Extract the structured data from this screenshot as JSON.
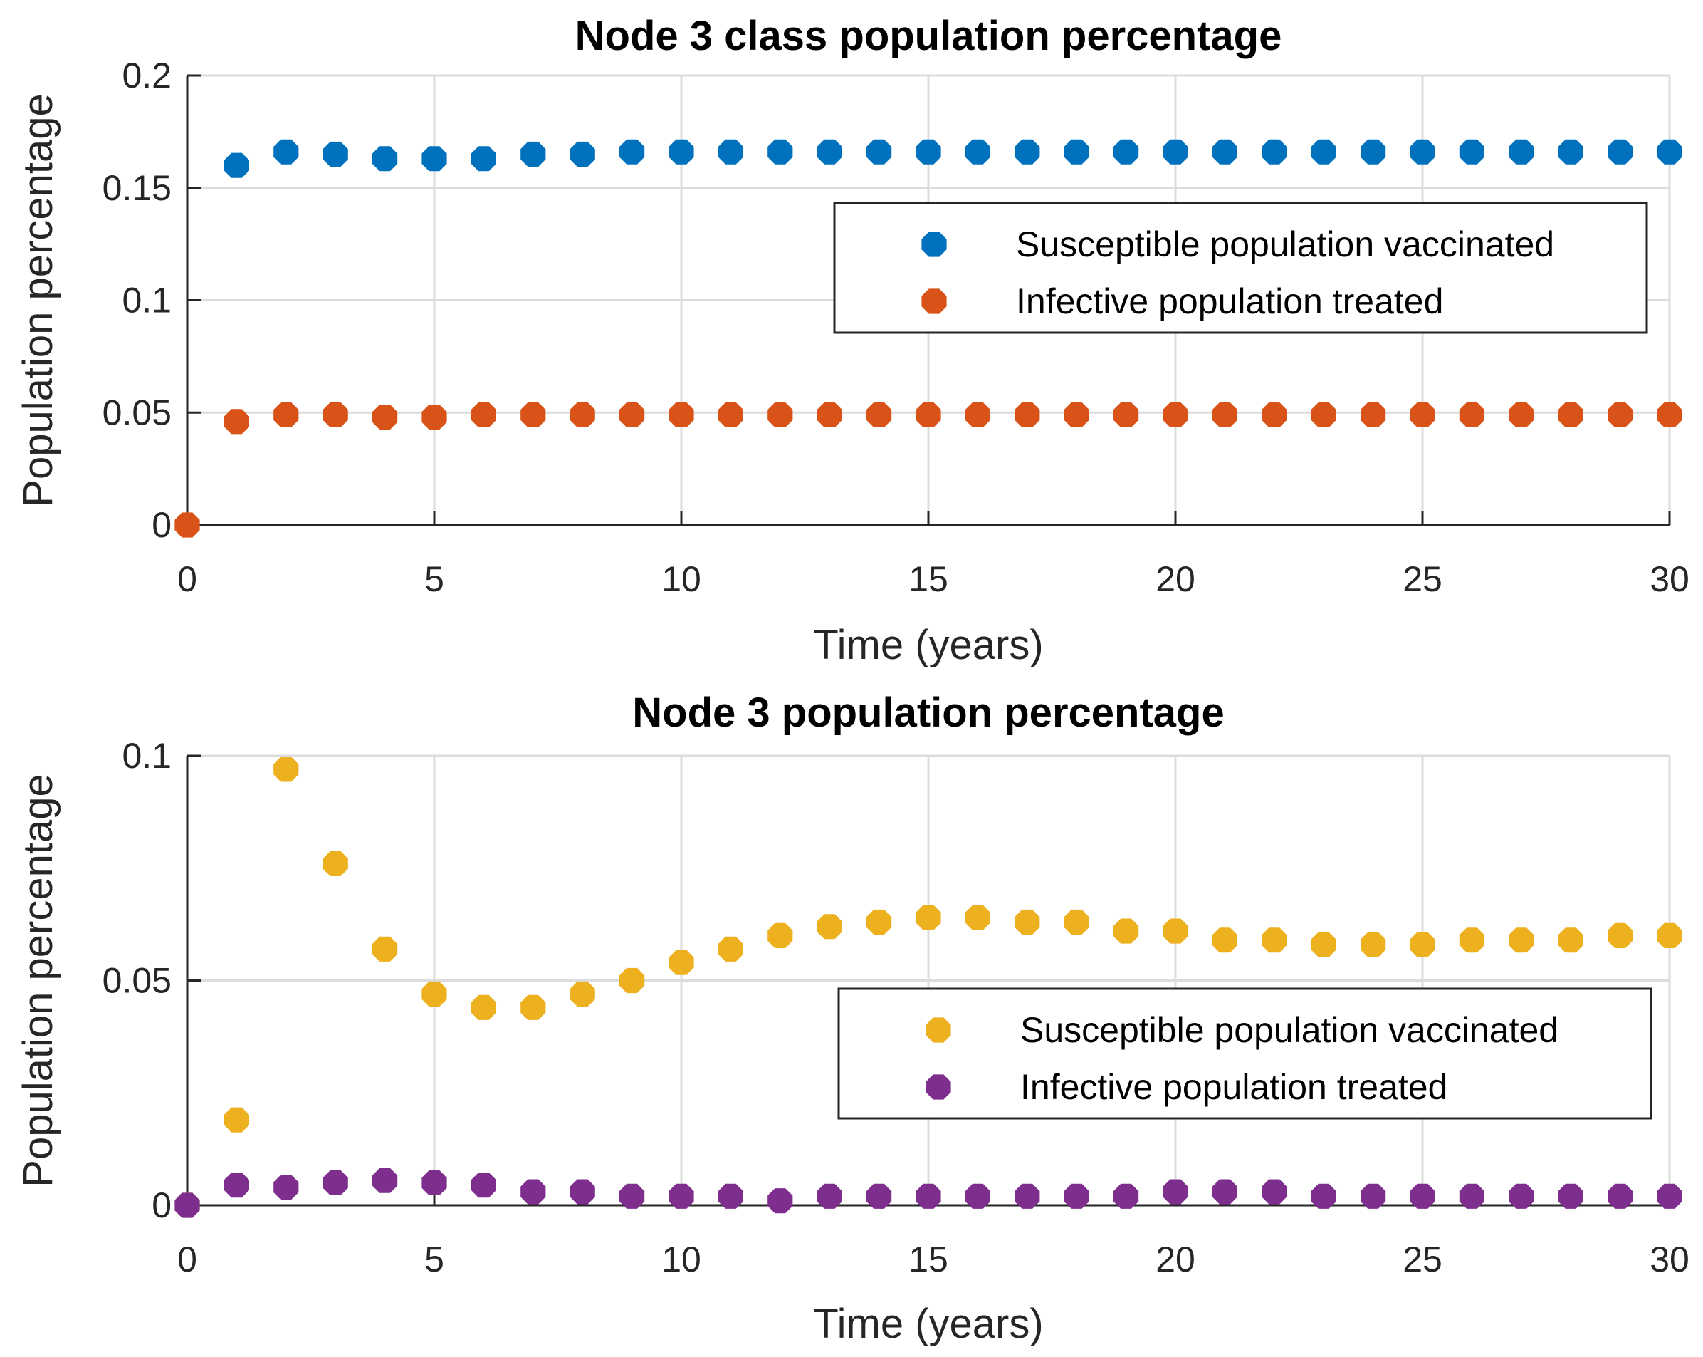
{
  "chart_data": [
    {
      "type": "scatter",
      "title": "Node 3 class population percentage",
      "xlabel": "Time (years)",
      "ylabel": "Population percentage",
      "xlim": [
        0,
        30
      ],
      "ylim": [
        0,
        0.2
      ],
      "xticks": [
        0,
        5,
        10,
        15,
        20,
        25,
        30
      ],
      "xtick_labels": [
        "0",
        "5",
        "10",
        "15",
        "20",
        "25",
        "30"
      ],
      "yticks": [
        0,
        0.05,
        0.1,
        0.15,
        0.2
      ],
      "ytick_labels": [
        "0",
        "0.05",
        "0.1",
        "0.15",
        "0.2"
      ],
      "grid": true,
      "legend_position": "right",
      "series": [
        {
          "name": "Susceptible population vaccinated",
          "color": "#0072BD",
          "x": [
            1,
            2,
            3,
            4,
            5,
            6,
            7,
            8,
            9,
            10,
            11,
            12,
            13,
            14,
            15,
            16,
            17,
            18,
            19,
            20,
            21,
            22,
            23,
            24,
            25,
            26,
            27,
            28,
            29,
            30
          ],
          "y": [
            0.16,
            0.166,
            0.165,
            0.163,
            0.163,
            0.163,
            0.165,
            0.165,
            0.166,
            0.166,
            0.166,
            0.166,
            0.166,
            0.166,
            0.166,
            0.166,
            0.166,
            0.166,
            0.166,
            0.166,
            0.166,
            0.166,
            0.166,
            0.166,
            0.166,
            0.166,
            0.166,
            0.166,
            0.166,
            0.166
          ]
        },
        {
          "name": "Infective population treated",
          "color": "#D95319",
          "x": [
            0,
            1,
            2,
            3,
            4,
            5,
            6,
            7,
            8,
            9,
            10,
            11,
            12,
            13,
            14,
            15,
            16,
            17,
            18,
            19,
            20,
            21,
            22,
            23,
            24,
            25,
            26,
            27,
            28,
            29,
            30
          ],
          "y": [
            0,
            0.046,
            0.049,
            0.049,
            0.048,
            0.048,
            0.049,
            0.049,
            0.049,
            0.049,
            0.049,
            0.049,
            0.049,
            0.049,
            0.049,
            0.049,
            0.049,
            0.049,
            0.049,
            0.049,
            0.049,
            0.049,
            0.049,
            0.049,
            0.049,
            0.049,
            0.049,
            0.049,
            0.049,
            0.049,
            0.049
          ]
        }
      ]
    },
    {
      "type": "scatter",
      "title": "Node 3 population percentage",
      "xlabel": "Time (years)",
      "ylabel": "Population percentage",
      "xlim": [
        0,
        30
      ],
      "ylim": [
        0,
        0.1
      ],
      "xticks": [
        0,
        5,
        10,
        15,
        20,
        25,
        30
      ],
      "xtick_labels": [
        "0",
        "5",
        "10",
        "15",
        "20",
        "25",
        "30"
      ],
      "yticks": [
        0,
        0.05,
        0.1
      ],
      "ytick_labels": [
        "0",
        "0.05",
        "0.1"
      ],
      "grid": true,
      "legend_position": "right",
      "series": [
        {
          "name": "Susceptible population vaccinated",
          "color": "#EDB120",
          "x": [
            0,
            1,
            2,
            3,
            4,
            5,
            6,
            7,
            8,
            9,
            10,
            11,
            12,
            13,
            14,
            15,
            16,
            17,
            18,
            19,
            20,
            21,
            22,
            23,
            24,
            25,
            26,
            27,
            28,
            29,
            30
          ],
          "y": [
            0,
            0.019,
            0.097,
            0.076,
            0.057,
            0.047,
            0.044,
            0.044,
            0.047,
            0.05,
            0.054,
            0.057,
            0.06,
            0.062,
            0.063,
            0.064,
            0.064,
            0.063,
            0.063,
            0.061,
            0.061,
            0.059,
            0.059,
            0.058,
            0.058,
            0.058,
            0.059,
            0.059,
            0.059,
            0.06,
            0.06
          ]
        },
        {
          "name": "Infective population treated",
          "color": "#7E2F8E",
          "x": [
            0,
            1,
            2,
            3,
            4,
            5,
            6,
            7,
            8,
            9,
            10,
            11,
            12,
            13,
            14,
            15,
            16,
            17,
            18,
            19,
            20,
            21,
            22,
            23,
            24,
            25,
            26,
            27,
            28,
            29,
            30
          ],
          "y": [
            0,
            0.0045,
            0.004,
            0.005,
            0.0055,
            0.005,
            0.0045,
            0.003,
            0.003,
            0.002,
            0.002,
            0.002,
            0.001,
            0.002,
            0.002,
            0.002,
            0.002,
            0.002,
            0.002,
            0.002,
            0.003,
            0.003,
            0.003,
            0.002,
            0.002,
            0.002,
            0.002,
            0.002,
            0.002,
            0.002,
            0.002
          ]
        }
      ]
    }
  ]
}
